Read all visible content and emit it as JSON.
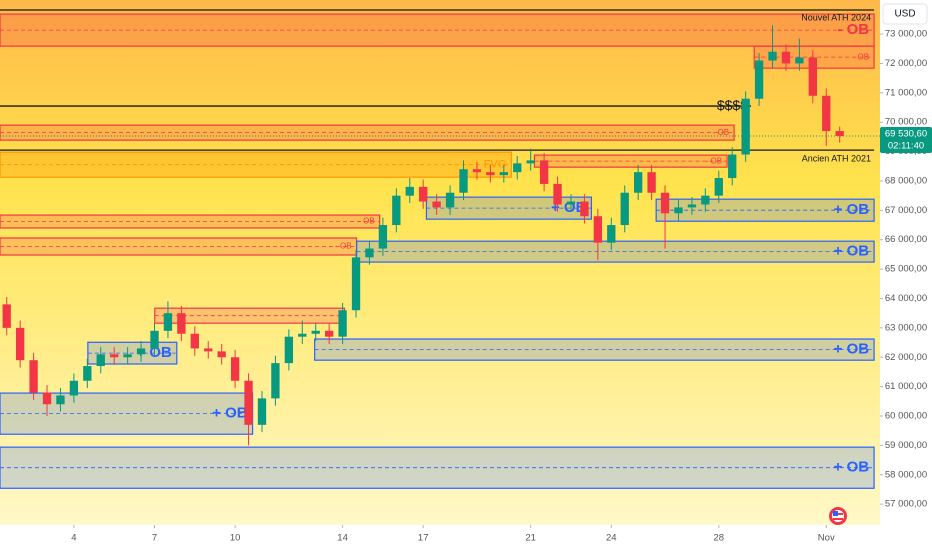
{
  "chart_data": {
    "type": "candlestick",
    "currency": "USD",
    "xlim": [
      1.25,
      34
    ],
    "xticks": [
      4,
      7,
      10,
      14,
      17,
      21,
      24,
      28,
      {
        "value": 32,
        "label": "Nov"
      }
    ],
    "ylim": [
      56290,
      74160
    ],
    "yticks": [
      {
        "value": 57000,
        "label": "57 000,00"
      },
      {
        "value": 58000,
        "label": "58 000,00"
      },
      {
        "value": 59000,
        "label": "59 000,00"
      },
      {
        "value": 60000,
        "label": "60 000,00"
      },
      {
        "value": 61000,
        "label": "61 000,00"
      },
      {
        "value": 62000,
        "label": "62 000,00"
      },
      {
        "value": 63000,
        "label": "63 000,00"
      },
      {
        "value": 64000,
        "label": "64 000,00"
      },
      {
        "value": 65000,
        "label": "65 000,00"
      },
      {
        "value": 66000,
        "label": "66 000,00"
      },
      {
        "value": 67000,
        "label": "67 000,00"
      },
      {
        "value": 68000,
        "label": "68 000,00"
      },
      {
        "value": 69000,
        "label": "69 000,00"
      },
      {
        "value": 70000,
        "label": "70 000,00"
      },
      {
        "value": 71000,
        "label": "71 000,00"
      },
      {
        "value": 72000,
        "label": "72 000,00"
      },
      {
        "value": 73000,
        "label": "73 000,00"
      }
    ],
    "up_color": "#089981",
    "down_color": "#f23645",
    "x": [
      1.5,
      2,
      2.5,
      3,
      3.5,
      4,
      4.5,
      5,
      5.5,
      6,
      6.5,
      7,
      7.5,
      8,
      8.5,
      9,
      9.5,
      10,
      10.5,
      11,
      11.5,
      12,
      12.5,
      13,
      13.5,
      14,
      14.5,
      15,
      15.5,
      16,
      16.5,
      17,
      17.5,
      18,
      18.5,
      19,
      19.5,
      20,
      20.5,
      21,
      21.5,
      22,
      22.5,
      23,
      23.5,
      24,
      24.5,
      25,
      25.5,
      26,
      26.5,
      27,
      27.5,
      28,
      28.5,
      29,
      29.5,
      30,
      30.5,
      31,
      31.5,
      32,
      32.5
    ],
    "open": [
      63800,
      63000,
      61900,
      60800,
      60400,
      60700,
      61200,
      61700,
      62100,
      62000,
      62100,
      62300,
      62900,
      63500,
      62800,
      62300,
      62200,
      62000,
      61200,
      59700,
      60600,
      61800,
      62700,
      62800,
      62900,
      62700,
      63600,
      65400,
      65700,
      66500,
      67500,
      67800,
      67300,
      67100,
      67600,
      68400,
      68300,
      68200,
      68300,
      68600,
      68700,
      67900,
      67200,
      67300,
      66800,
      65900,
      66500,
      67600,
      68300,
      67600,
      66900,
      67100,
      67200,
      67500,
      68100,
      68900,
      70800,
      72100,
      72400,
      72000,
      72200,
      70900,
      69700
    ],
    "high": [
      64050,
      63250,
      62150,
      61050,
      60950,
      61450,
      61950,
      62350,
      62350,
      62350,
      62550,
      63150,
      63900,
      63750,
      63050,
      62550,
      62450,
      62250,
      61450,
      60850,
      62050,
      62950,
      63250,
      63150,
      63150,
      63850,
      65650,
      65950,
      66750,
      67750,
      68100,
      68050,
      67550,
      67850,
      68700,
      68650,
      68550,
      68550,
      68850,
      69100,
      68950,
      68150,
      67550,
      67550,
      67050,
      66750,
      67850,
      68550,
      68550,
      67850,
      67350,
      67450,
      67750,
      68350,
      69150,
      71050,
      72350,
      73300,
      72650,
      72850,
      72450,
      71150,
      69850
    ],
    "low": [
      62750,
      61650,
      60550,
      60000,
      60150,
      60450,
      60950,
      61450,
      61750,
      61750,
      61850,
      62050,
      62650,
      62550,
      62050,
      61950,
      61750,
      60950,
      59000,
      59450,
      60350,
      61550,
      62450,
      62550,
      62450,
      62450,
      63350,
      65150,
      65450,
      66250,
      67250,
      67050,
      66850,
      66850,
      67350,
      68050,
      67950,
      67950,
      68050,
      68350,
      67650,
      66950,
      66950,
      66550,
      65300,
      65650,
      66250,
      67350,
      67350,
      65700,
      66650,
      66850,
      66950,
      67250,
      67850,
      68650,
      70550,
      71850,
      71750,
      71750,
      70650,
      69200,
      69300
    ],
    "close": [
      63000,
      61900,
      60800,
      60400,
      60700,
      61200,
      61700,
      62100,
      62000,
      62100,
      62300,
      62900,
      63500,
      62800,
      62300,
      62200,
      62000,
      61200,
      59700,
      60600,
      61800,
      62700,
      62800,
      62900,
      62700,
      63600,
      65400,
      65700,
      66500,
      67500,
      67800,
      67300,
      67100,
      67600,
      68400,
      68300,
      68200,
      68300,
      68600,
      68700,
      67900,
      67200,
      67300,
      66800,
      65900,
      66500,
      67600,
      68300,
      67600,
      66900,
      67100,
      67200,
      67500,
      68100,
      68900,
      70800,
      72100,
      72400,
      72000,
      72200,
      70900,
      69700,
      69530.6
    ],
    "zones": [
      {
        "kind": "bearish",
        "x": [
          1.25,
          33.78
        ],
        "price": [
          72590,
          73680
        ],
        "label": "- OB"
      },
      {
        "kind": "bearish",
        "x": [
          29.32,
          33.78
        ],
        "price": [
          71840,
          72590
        ],
        "label": "- OB"
      },
      {
        "kind": "bearish",
        "x": [
          1.25,
          28.57
        ],
        "price": [
          69390,
          69900
        ],
        "label": "- OB"
      },
      {
        "kind": "fvg",
        "x": [
          1.25,
          20.28
        ],
        "price": [
          68130,
          68980
        ],
        "label": "FVG"
      },
      {
        "kind": "bearish",
        "x": [
          21.14,
          28.31
        ],
        "price": [
          68470,
          68880
        ],
        "label": "- OB"
      },
      {
        "kind": "bearish",
        "x": [
          1.25,
          15.38
        ],
        "price": [
          66400,
          66840
        ],
        "label": "- OB"
      },
      {
        "kind": "bearish",
        "x": [
          1.25,
          14.52
        ],
        "price": [
          65480,
          66060
        ],
        "label": "- OB"
      },
      {
        "kind": "bearish",
        "x": [
          7.01,
          14.07
        ],
        "price": [
          63160,
          63670
        ]
      },
      {
        "kind": "bullish",
        "x": [
          17.12,
          23.26
        ],
        "price": [
          66700,
          67450
        ],
        "label": "+ OB"
      },
      {
        "kind": "bullish",
        "x": [
          25.67,
          33.78
        ],
        "price": [
          66630,
          67380
        ],
        "label": "+ OB"
      },
      {
        "kind": "bullish",
        "x": [
          14.52,
          33.78
        ],
        "price": [
          65240,
          65950
        ],
        "label": "+ OB"
      },
      {
        "kind": "bullish",
        "x": [
          12.96,
          33.78
        ],
        "price": [
          61900,
          62620
        ],
        "label": "+ OB"
      },
      {
        "kind": "bullish",
        "x": [
          4.52,
          7.83
        ],
        "price": [
          61770,
          62510
        ],
        "label": "+ OB"
      },
      {
        "kind": "bullish",
        "x": [
          1.25,
          10.65
        ],
        "price": [
          59380,
          60780
        ],
        "label": "+ OB"
      },
      {
        "kind": "bullish",
        "x": [
          1.25,
          33.78
        ],
        "price": [
          57540,
          58940
        ],
        "label": "+ OB"
      }
    ],
    "hlines": [
      {
        "label": "Nouvel ATH 2024",
        "value": 73820,
        "x": [
          1.25,
          33.78
        ]
      },
      {
        "label": "$$$$",
        "value": 70550,
        "x": [
          1.25,
          29.2
        ]
      },
      {
        "label": "Ancien ATH 2021",
        "value": 69050,
        "x": [
          1.25,
          33.78
        ]
      }
    ],
    "last_price": {
      "value": 69530.6,
      "label": "69 530,60",
      "countdown": "02:11:40"
    }
  }
}
